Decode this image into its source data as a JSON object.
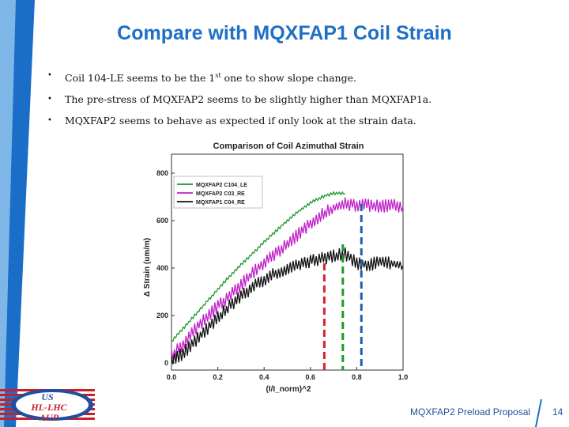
{
  "slide": {
    "title": "Compare with MQXFAP1 Coil Strain",
    "footer": "MQXFAP2 Preload Proposal",
    "page_number": "14"
  },
  "bullets": [
    {
      "pre": "Coil 104-LE seems to be the 1",
      "sup": "st",
      "post": " one to show slope change."
    },
    {
      "pre": "The pre-stress of MQXFAP2 seems to be slightly higher than MQXFAP1a.",
      "sup": "",
      "post": ""
    },
    {
      "pre": "MQXFAP2 seems to behave as expected if only look at the strain data.",
      "sup": "",
      "post": ""
    }
  ],
  "logo": {
    "line1": "US",
    "line2": "HL-LHC",
    "line3": "AUP"
  },
  "colors": {
    "title": "#1f6fc6",
    "series_green": "#1a9a2a",
    "series_magenta": "#c020c8",
    "series_black": "#111111",
    "marker_red": "#d8202a",
    "marker_green": "#1a9a2a",
    "marker_blue": "#1f5fb0"
  },
  "chart_data": {
    "type": "line",
    "title": "Comparison of Coil Azimuthal Strain",
    "xlabel": "(I/I_norm)^2",
    "ylabel": "Δ Strain (um/m)",
    "xlim": [
      0,
      1.0
    ],
    "ylim": [
      -30,
      880
    ],
    "xticks": [
      "0.0",
      "0.2",
      "0.4",
      "0.6",
      "0.8",
      "1.0"
    ],
    "yticks": [
      "0",
      "200",
      "400",
      "600",
      "800"
    ],
    "legend_position": "top-left",
    "series": [
      {
        "name": "MQXFAP2 C104_LE",
        "color": "#1a9a2a",
        "x": [
          0.0,
          0.05,
          0.1,
          0.15,
          0.2,
          0.25,
          0.3,
          0.35,
          0.4,
          0.45,
          0.5,
          0.55,
          0.6,
          0.65,
          0.7,
          0.75
        ],
        "y": [
          90,
          145,
          200,
          255,
          310,
          365,
          415,
          460,
          510,
          555,
          600,
          640,
          675,
          700,
          715,
          715
        ]
      },
      {
        "name": "MQXFAP2 C03_RE",
        "color": "#c020c8",
        "x": [
          0.0,
          0.05,
          0.1,
          0.15,
          0.2,
          0.25,
          0.3,
          0.35,
          0.4,
          0.45,
          0.5,
          0.55,
          0.6,
          0.65,
          0.7,
          0.75,
          0.8,
          0.85,
          0.9,
          0.95,
          1.0
        ],
        "y": [
          30,
          80,
          140,
          190,
          240,
          280,
          330,
          380,
          420,
          460,
          500,
          545,
          590,
          625,
          655,
          670,
          665,
          665,
          660,
          665,
          660
        ]
      },
      {
        "name": "MQXFAP1 C04_RE",
        "color": "#111111",
        "x": [
          0.0,
          0.05,
          0.1,
          0.15,
          0.2,
          0.25,
          0.3,
          0.35,
          0.4,
          0.45,
          0.5,
          0.55,
          0.6,
          0.65,
          0.7,
          0.75,
          0.8,
          0.85,
          0.9,
          0.95,
          1.0
        ],
        "y": [
          10,
          40,
          90,
          140,
          190,
          240,
          280,
          320,
          350,
          380,
          400,
          410,
          430,
          440,
          450,
          460,
          420,
          410,
          430,
          420,
          410
        ]
      }
    ],
    "vertical_markers": [
      {
        "x": 0.66,
        "y_top": 420,
        "color": "#d8202a"
      },
      {
        "x": 0.74,
        "y_top": 500,
        "color": "#1a9a2a"
      },
      {
        "x": 0.82,
        "y_top": 670,
        "color": "#1f5fb0"
      }
    ]
  }
}
